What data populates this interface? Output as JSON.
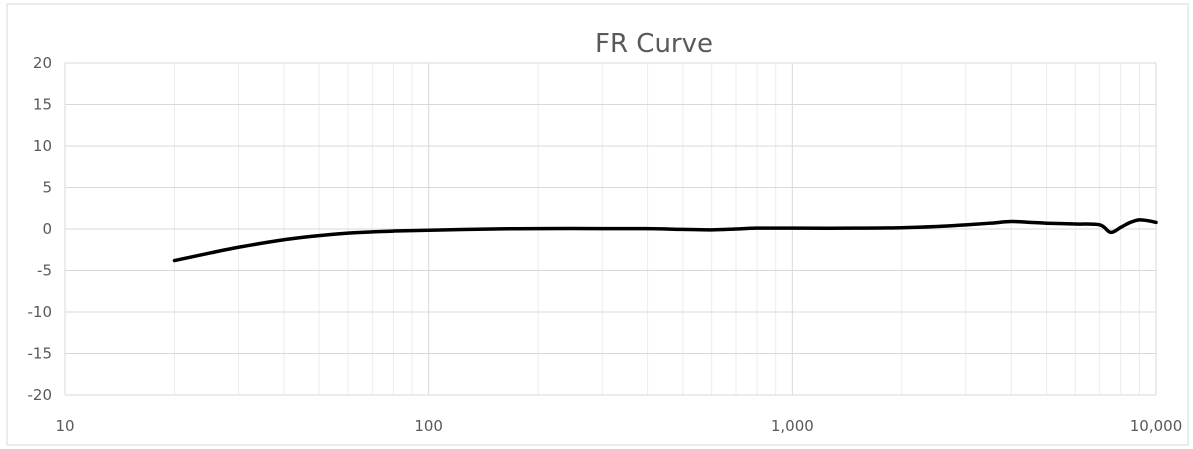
{
  "chart_data": {
    "type": "line",
    "title": "FR Curve",
    "xlabel": "",
    "ylabel": "",
    "x_scale": "log",
    "xlim": [
      10,
      10000
    ],
    "ylim": [
      -20,
      20
    ],
    "x_ticks": [
      10,
      100,
      1000,
      10000
    ],
    "x_tick_labels": [
      "10",
      "100",
      "1,000",
      "10,000"
    ],
    "y_ticks": [
      20,
      15,
      10,
      5,
      0,
      -5,
      -10,
      -15,
      -20
    ],
    "y_tick_labels": [
      "20",
      "15",
      "10",
      "5",
      "0",
      "-5",
      "-10",
      "-15",
      "-20"
    ],
    "grid": true,
    "legend": "none",
    "colors": {
      "line": "#000000",
      "major_grid": "#d9d9d9",
      "minor_grid": "#ececec",
      "text": "#595959",
      "border": "#d9d9d9"
    },
    "series": [
      {
        "x": [
          20,
          25,
          30,
          40,
          50,
          60,
          70,
          80,
          100,
          150,
          200,
          300,
          400,
          500,
          600,
          700,
          800,
          900,
          1000,
          1500,
          2000,
          2500,
          3000,
          3500,
          4000,
          4500,
          5000,
          6000,
          7000,
          7500,
          8000,
          8500,
          9000,
          9500,
          10000
        ],
        "values": [
          -3.8,
          -2.9,
          -2.2,
          -1.3,
          -0.8,
          -0.5,
          -0.35,
          -0.25,
          -0.15,
          0.0,
          0.05,
          0.05,
          0.05,
          -0.05,
          -0.1,
          0.0,
          0.1,
          0.1,
          0.1,
          0.1,
          0.15,
          0.3,
          0.5,
          0.7,
          0.9,
          0.8,
          0.7,
          0.6,
          0.5,
          -0.4,
          0.2,
          0.8,
          1.1,
          1.0,
          0.8
        ]
      }
    ]
  }
}
